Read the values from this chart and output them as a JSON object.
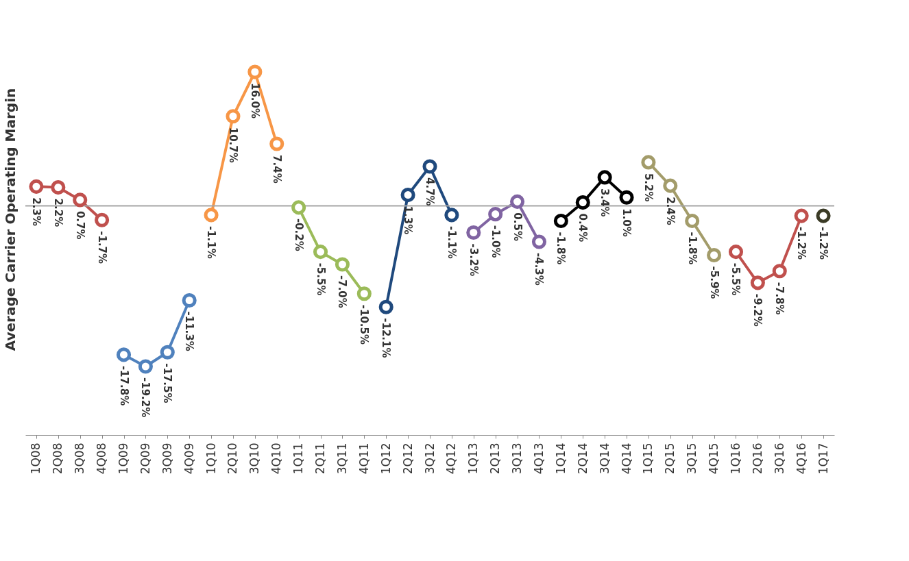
{
  "chart_data": {
    "type": "line",
    "ylabel": "Average Carrier Operating Margin",
    "categories": [
      "1Q08",
      "2Q08",
      "3Q08",
      "4Q08",
      "1Q09",
      "2Q09",
      "3Q09",
      "4Q09",
      "1Q10",
      "2Q10",
      "3Q10",
      "4Q10",
      "1Q11",
      "2Q11",
      "3Q11",
      "4Q11",
      "1Q12",
      "2Q12",
      "3Q12",
      "4Q12",
      "1Q13",
      "2Q13",
      "3Q13",
      "4Q13",
      "1Q14",
      "2Q14",
      "3Q14",
      "4Q14",
      "1Q15",
      "2Q15",
      "3Q15",
      "4Q15",
      "1Q16",
      "2Q16",
      "3Q16",
      "4Q16",
      "1Q17"
    ],
    "tick_labels": "x",
    "grid": false,
    "legend": false,
    "marker": "circle",
    "line_style": "solid",
    "ref_lines": [
      {
        "axis": "y",
        "value": 0,
        "color": "#a6a6a6"
      }
    ],
    "series": [
      {
        "color": "#c0504d",
        "values": [
          2.3,
          2.2,
          0.7,
          -1.7,
          null,
          null,
          null,
          null,
          null,
          null,
          null,
          null,
          null,
          null,
          null,
          null,
          null,
          null,
          null,
          null,
          null,
          null,
          null,
          null,
          null,
          null,
          null,
          null,
          null,
          null,
          null,
          null,
          null,
          null,
          null,
          null,
          null
        ],
        "value_labels": [
          "2.3%",
          "2.2%",
          "0.7%",
          "-1.7%",
          null,
          null,
          null,
          null,
          null,
          null,
          null,
          null,
          null,
          null,
          null,
          null,
          null,
          null,
          null,
          null,
          null,
          null,
          null,
          null,
          null,
          null,
          null,
          null,
          null,
          null,
          null,
          null,
          null,
          null,
          null,
          null,
          null
        ]
      },
      {
        "color": "#4f81bd",
        "values": [
          null,
          null,
          null,
          null,
          -17.8,
          -19.2,
          -17.5,
          -11.3,
          null,
          null,
          null,
          null,
          null,
          null,
          null,
          null,
          null,
          null,
          null,
          null,
          null,
          null,
          null,
          null,
          null,
          null,
          null,
          null,
          null,
          null,
          null,
          null,
          null,
          null,
          null,
          null,
          null
        ],
        "value_labels": [
          null,
          null,
          null,
          null,
          "-17.8%",
          "-19.2%",
          "-17.5%",
          "-11.3%",
          null,
          null,
          null,
          null,
          null,
          null,
          null,
          null,
          null,
          null,
          null,
          null,
          null,
          null,
          null,
          null,
          null,
          null,
          null,
          null,
          null,
          null,
          null,
          null,
          null,
          null,
          null,
          null,
          null
        ]
      },
      {
        "color": "#f79646",
        "values": [
          null,
          null,
          null,
          null,
          null,
          null,
          null,
          null,
          -1.1,
          10.7,
          16.0,
          7.4,
          null,
          null,
          null,
          null,
          null,
          null,
          null,
          null,
          null,
          null,
          null,
          null,
          null,
          null,
          null,
          null,
          null,
          null,
          null,
          null,
          null,
          null,
          null,
          null,
          null
        ],
        "value_labels": [
          null,
          null,
          null,
          null,
          null,
          null,
          null,
          null,
          "-1.1%",
          "10.7%",
          "16.0%",
          "7.4%",
          null,
          null,
          null,
          null,
          null,
          null,
          null,
          null,
          null,
          null,
          null,
          null,
          null,
          null,
          null,
          null,
          null,
          null,
          null,
          null,
          null,
          null,
          null,
          null,
          null
        ]
      },
      {
        "color": "#9bbb59",
        "values": [
          null,
          null,
          null,
          null,
          null,
          null,
          null,
          null,
          null,
          null,
          null,
          null,
          -0.2,
          -5.5,
          -7.0,
          -10.5,
          null,
          null,
          null,
          null,
          null,
          null,
          null,
          null,
          null,
          null,
          null,
          null,
          null,
          null,
          null,
          null,
          null,
          null,
          null,
          null,
          null
        ],
        "value_labels": [
          null,
          null,
          null,
          null,
          null,
          null,
          null,
          null,
          null,
          null,
          null,
          null,
          "-0.2%",
          "-5.5%",
          "-7.0%",
          "-10.5%",
          null,
          null,
          null,
          null,
          null,
          null,
          null,
          null,
          null,
          null,
          null,
          null,
          null,
          null,
          null,
          null,
          null,
          null,
          null,
          null,
          null
        ]
      },
      {
        "color": "#1f497d",
        "values": [
          null,
          null,
          null,
          null,
          null,
          null,
          null,
          null,
          null,
          null,
          null,
          null,
          null,
          null,
          null,
          null,
          -12.1,
          1.3,
          4.7,
          -1.1,
          null,
          null,
          null,
          null,
          null,
          null,
          null,
          null,
          null,
          null,
          null,
          null,
          null,
          null,
          null,
          null,
          null
        ],
        "value_labels": [
          null,
          null,
          null,
          null,
          null,
          null,
          null,
          null,
          null,
          null,
          null,
          null,
          null,
          null,
          null,
          null,
          "-12.1%",
          "1.3%",
          "4.7%",
          "-1.1%",
          null,
          null,
          null,
          null,
          null,
          null,
          null,
          null,
          null,
          null,
          null,
          null,
          null,
          null,
          null,
          null,
          null
        ]
      },
      {
        "color": "#8064a2",
        "values": [
          null,
          null,
          null,
          null,
          null,
          null,
          null,
          null,
          null,
          null,
          null,
          null,
          null,
          null,
          null,
          null,
          null,
          null,
          null,
          null,
          -3.2,
          -1.0,
          0.5,
          -4.3,
          null,
          null,
          null,
          null,
          null,
          null,
          null,
          null,
          null,
          null,
          null,
          null,
          null
        ],
        "value_labels": [
          null,
          null,
          null,
          null,
          null,
          null,
          null,
          null,
          null,
          null,
          null,
          null,
          null,
          null,
          null,
          null,
          null,
          null,
          null,
          null,
          "-3.2%",
          "-1.0%",
          "0.5%",
          "-4.3%",
          null,
          null,
          null,
          null,
          null,
          null,
          null,
          null,
          null,
          null,
          null,
          null,
          null
        ]
      },
      {
        "color": "#000000",
        "values": [
          null,
          null,
          null,
          null,
          null,
          null,
          null,
          null,
          null,
          null,
          null,
          null,
          null,
          null,
          null,
          null,
          null,
          null,
          null,
          null,
          null,
          null,
          null,
          null,
          -1.8,
          0.4,
          3.4,
          1.0,
          null,
          null,
          null,
          null,
          null,
          null,
          null,
          null,
          null
        ],
        "value_labels": [
          null,
          null,
          null,
          null,
          null,
          null,
          null,
          null,
          null,
          null,
          null,
          null,
          null,
          null,
          null,
          null,
          null,
          null,
          null,
          null,
          null,
          null,
          null,
          null,
          "-1.8%",
          "0.4%",
          "3.4%",
          "1.0%",
          null,
          null,
          null,
          null,
          null,
          null,
          null,
          null,
          null
        ]
      },
      {
        "color": "#a39c6a",
        "values": [
          null,
          null,
          null,
          null,
          null,
          null,
          null,
          null,
          null,
          null,
          null,
          null,
          null,
          null,
          null,
          null,
          null,
          null,
          null,
          null,
          null,
          null,
          null,
          null,
          null,
          null,
          null,
          null,
          5.2,
          2.4,
          -1.8,
          -5.9,
          null,
          null,
          null,
          null,
          null
        ],
        "value_labels": [
          null,
          null,
          null,
          null,
          null,
          null,
          null,
          null,
          null,
          null,
          null,
          null,
          null,
          null,
          null,
          null,
          null,
          null,
          null,
          null,
          null,
          null,
          null,
          null,
          null,
          null,
          null,
          null,
          "5.2%",
          "2.4%",
          "-1.8%",
          "-5.9%",
          null,
          null,
          null,
          null,
          null
        ]
      },
      {
        "color": "#c0504d",
        "values": [
          null,
          null,
          null,
          null,
          null,
          null,
          null,
          null,
          null,
          null,
          null,
          null,
          null,
          null,
          null,
          null,
          null,
          null,
          null,
          null,
          null,
          null,
          null,
          null,
          null,
          null,
          null,
          null,
          null,
          null,
          null,
          null,
          -5.5,
          -9.2,
          -7.8,
          -1.2,
          null
        ],
        "value_labels": [
          null,
          null,
          null,
          null,
          null,
          null,
          null,
          null,
          null,
          null,
          null,
          null,
          null,
          null,
          null,
          null,
          null,
          null,
          null,
          null,
          null,
          null,
          null,
          null,
          null,
          null,
          null,
          null,
          null,
          null,
          null,
          null,
          "-5.5%",
          "-9.2%",
          "-7.8%",
          "-1.2%",
          null
        ]
      },
      {
        "color": "#3b3b26",
        "values": [
          null,
          null,
          null,
          null,
          null,
          null,
          null,
          null,
          null,
          null,
          null,
          null,
          null,
          null,
          null,
          null,
          null,
          null,
          null,
          null,
          null,
          null,
          null,
          null,
          null,
          null,
          null,
          null,
          null,
          null,
          null,
          null,
          null,
          null,
          null,
          null,
          -1.2
        ],
        "value_labels": [
          null,
          null,
          null,
          null,
          null,
          null,
          null,
          null,
          null,
          null,
          null,
          null,
          null,
          null,
          null,
          null,
          null,
          null,
          null,
          null,
          null,
          null,
          null,
          null,
          null,
          null,
          null,
          null,
          null,
          null,
          null,
          null,
          null,
          null,
          null,
          null,
          "-1.2%"
        ]
      }
    ]
  }
}
